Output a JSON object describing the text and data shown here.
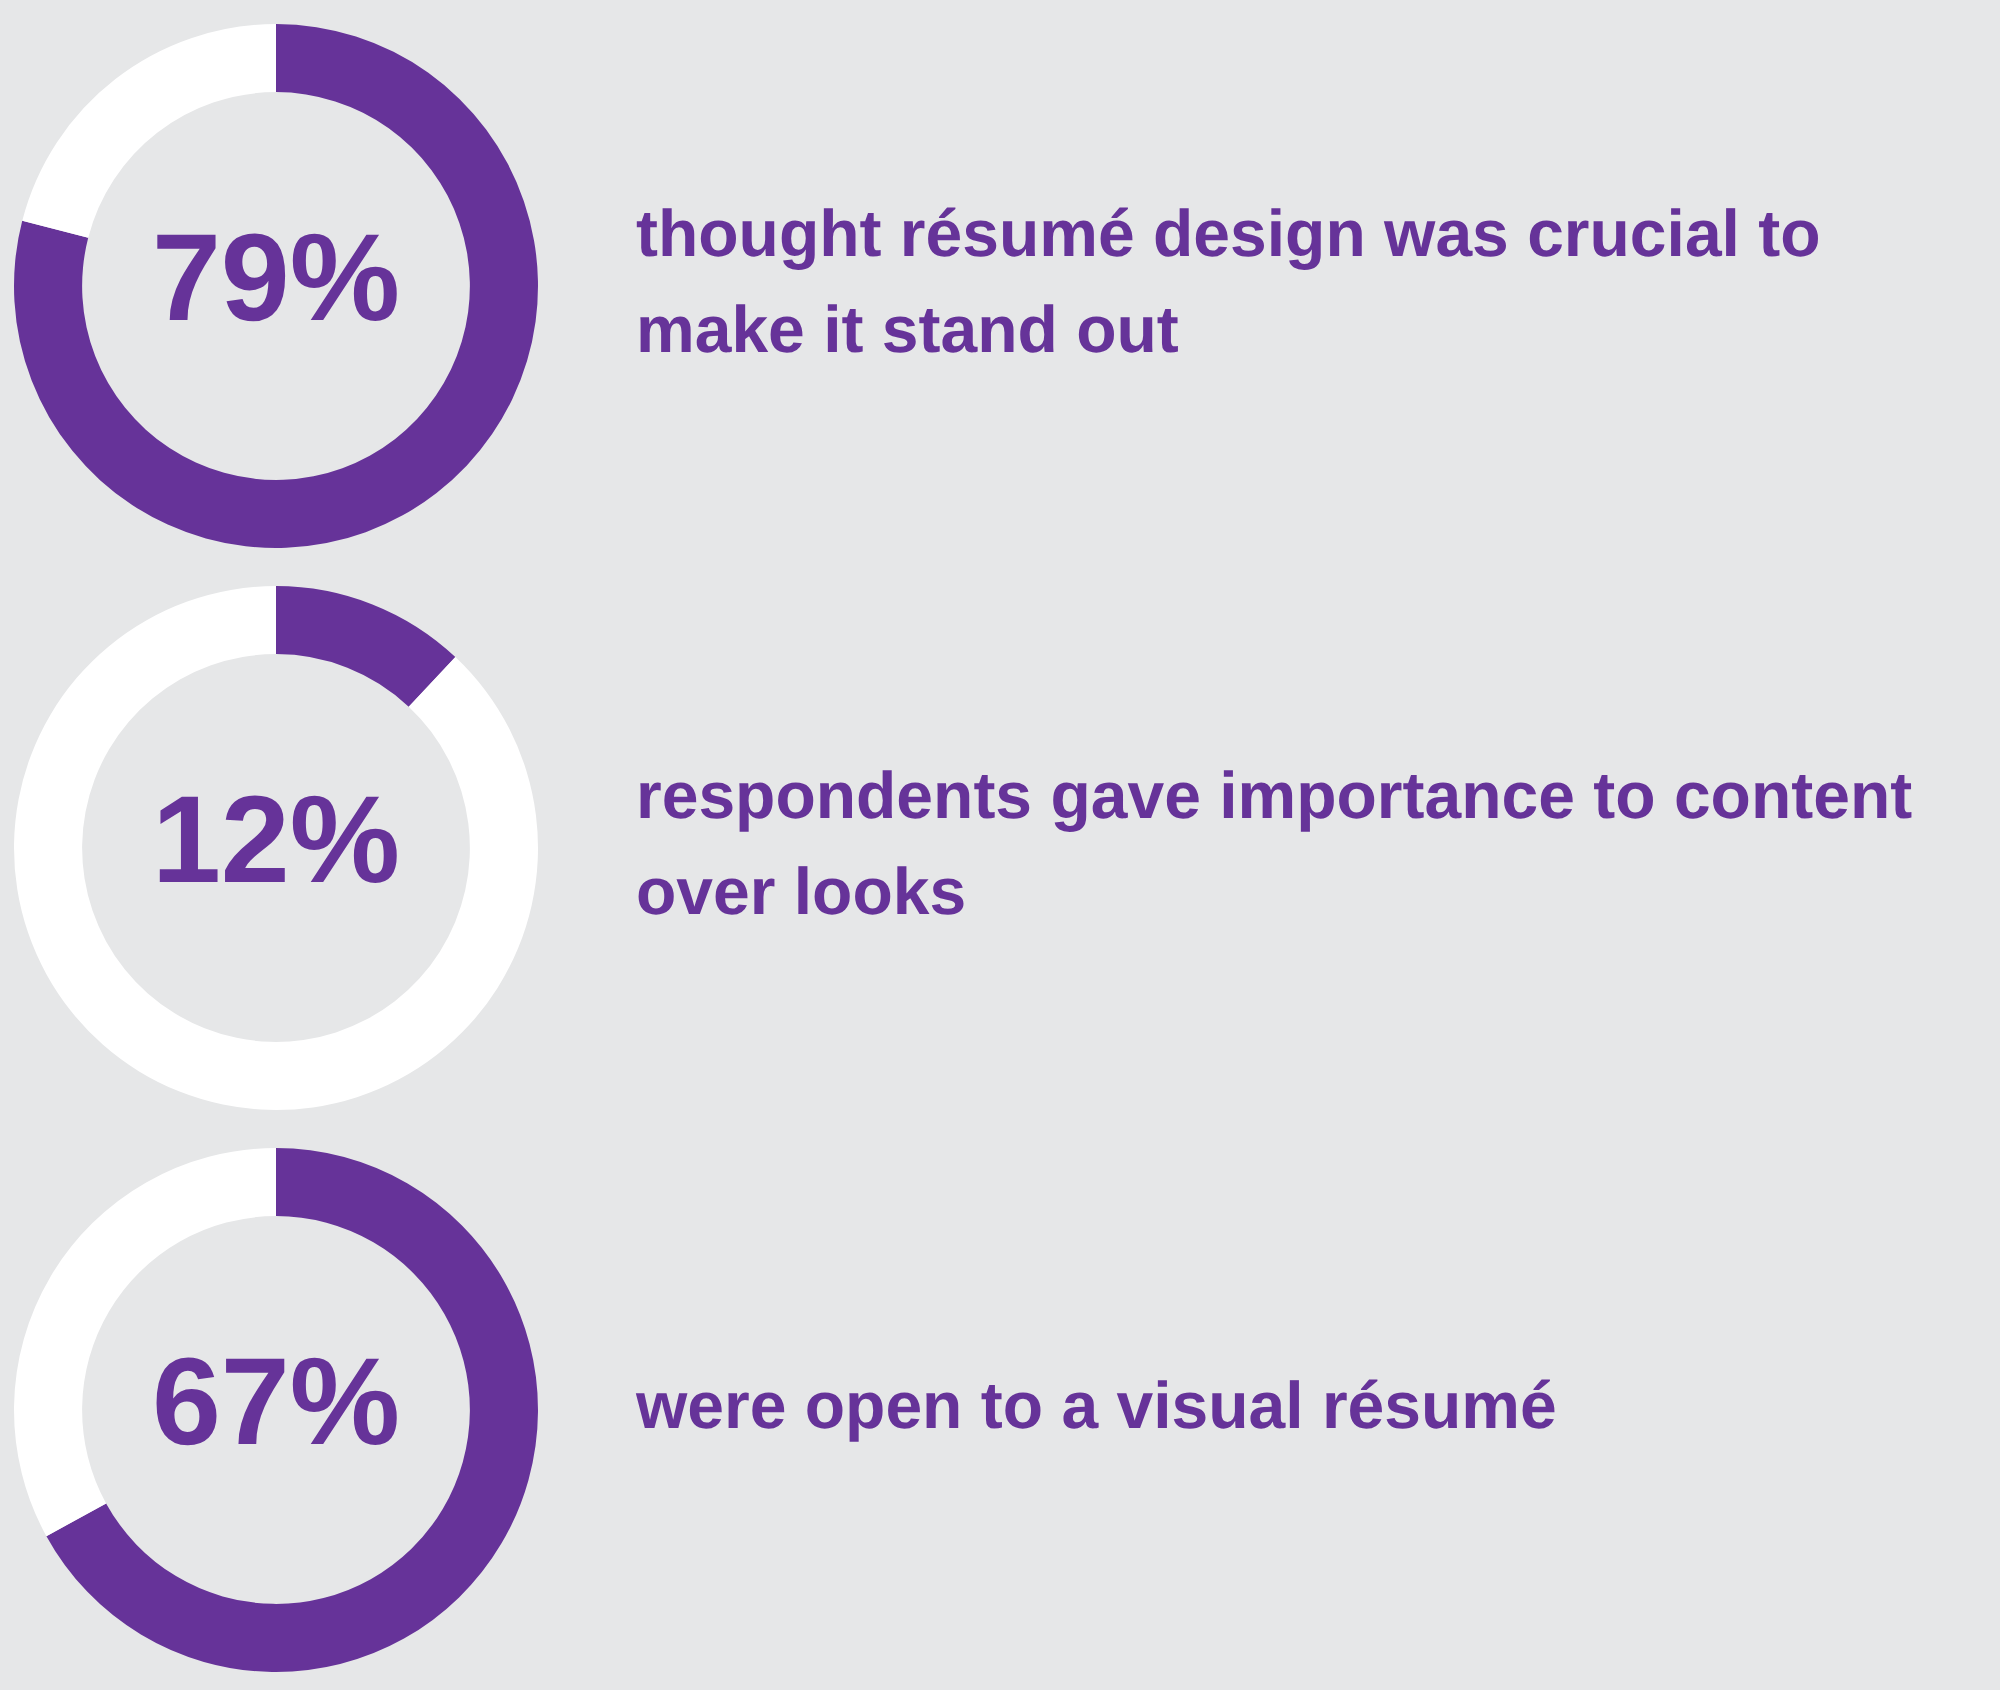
{
  "chart_data": [
    {
      "type": "donut",
      "categories": [
        null,
        null
      ],
      "values": [
        79,
        21
      ],
      "colors": [
        "#663399",
        "#ffffff"
      ],
      "value_labels": [
        "79%",
        null
      ],
      "annotations": [
        "thought résumé design was crucial to make it stand out"
      ]
    },
    {
      "type": "donut",
      "categories": [
        null,
        null
      ],
      "values": [
        12,
        88
      ],
      "colors": [
        "#663399",
        "#ffffff"
      ],
      "value_labels": [
        "12%",
        null
      ],
      "annotations": [
        "respondents gave importance to content over looks"
      ]
    },
    {
      "type": "donut",
      "categories": [
        null,
        null
      ],
      "values": [
        67,
        33
      ],
      "colors": [
        "#663399",
        "#ffffff"
      ],
      "value_labels": [
        "67%",
        null
      ],
      "annotations": [
        "were open to a visual résumé"
      ]
    }
  ]
}
